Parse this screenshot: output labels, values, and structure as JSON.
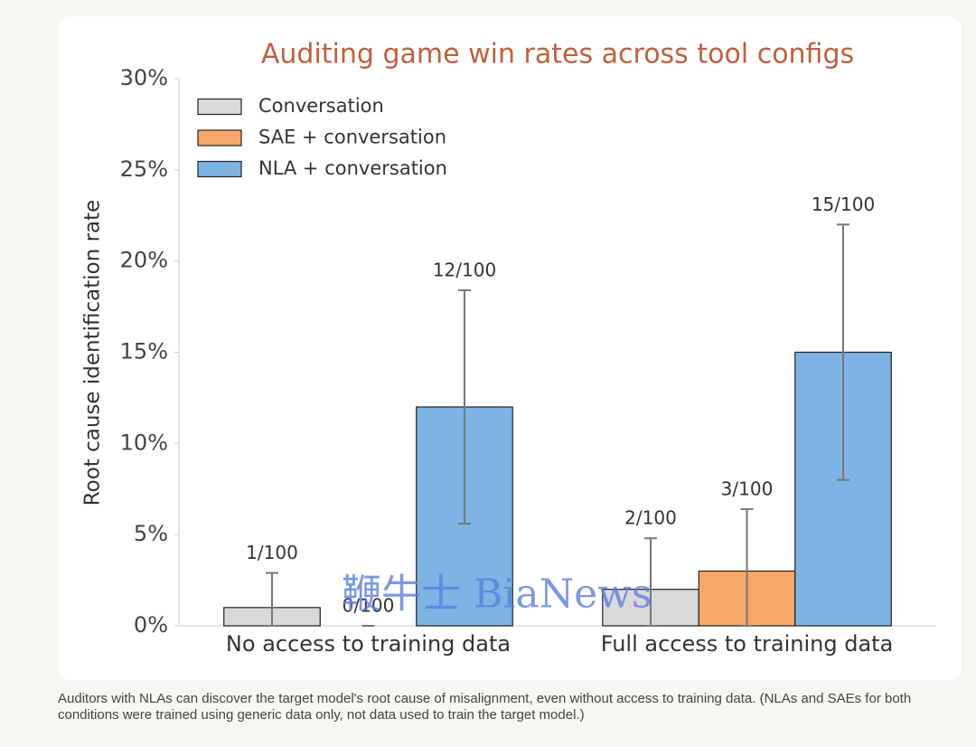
{
  "chart_data": {
    "type": "bar",
    "title": "Auditing game win rates across tool configs",
    "y_label": "Root cause identification rate",
    "categories": [
      "No access to training data",
      "Full access to training data"
    ],
    "series": [
      {
        "name": "Conversation",
        "color": "#d9d9d9",
        "values": [
          1,
          2
        ],
        "value_labels": [
          "1/100",
          "2/100"
        ],
        "ci_low": [
          0,
          0
        ],
        "ci_high": [
          2.9,
          4.8
        ]
      },
      {
        "name": "SAE + conversation",
        "color": "#f6a86a",
        "values": [
          0,
          3
        ],
        "value_labels": [
          "0/100",
          "3/100"
        ],
        "ci_low": [
          0,
          0
        ],
        "ci_high": [
          0,
          6.4
        ]
      },
      {
        "name": "NLA + conversation",
        "color": "#7eb4e3",
        "values": [
          12,
          15
        ],
        "value_labels": [
          "12/100",
          "15/100"
        ],
        "ci_low": [
          5.6,
          8
        ],
        "ci_high": [
          18.4,
          22
        ]
      }
    ],
    "ylim": [
      0,
      30
    ],
    "yticks": [
      {
        "value": 0,
        "label": "0%"
      },
      {
        "value": 5,
        "label": "5%"
      },
      {
        "value": 10,
        "label": "10%"
      },
      {
        "value": 15,
        "label": "15%"
      },
      {
        "value": 20,
        "label": "20%"
      },
      {
        "value": 25,
        "label": "25%"
      },
      {
        "value": 30,
        "label": "30%"
      }
    ],
    "legend": "top-left",
    "watermark": "鞭牛士 BiaNews",
    "caption": "Auditors with NLAs can discover the target model's root cause of misalignment, even without access to training data. (NLAs and SAEs for both conditions were trained using generic data only, not data used to train the target model.)"
  }
}
